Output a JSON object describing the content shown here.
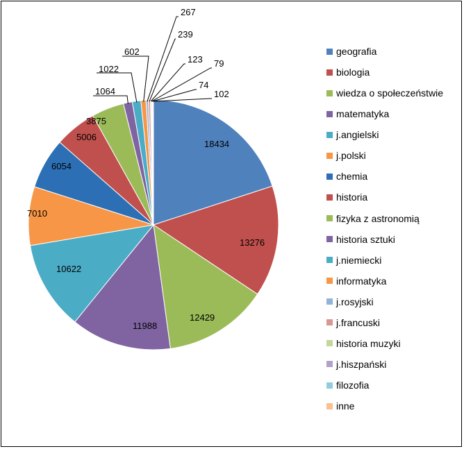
{
  "chart_data": {
    "type": "pie",
    "title": "",
    "legend_position": "right",
    "slices": [
      {
        "label": "geografia",
        "value": 18434,
        "color": "#4F81BD"
      },
      {
        "label": "biologia",
        "value": 13276,
        "color": "#C0504D"
      },
      {
        "label": "wiedza o społeczeństwie",
        "value": 12429,
        "color": "#9BBB59"
      },
      {
        "label": "matematyka",
        "value": 11988,
        "color": "#8064A2"
      },
      {
        "label": "j.angielski",
        "value": 10622,
        "color": "#4BACC6"
      },
      {
        "label": "j.polski",
        "value": 7010,
        "color": "#F79646"
      },
      {
        "label": "chemia",
        "value": 6054,
        "color": "#2C6FB5"
      },
      {
        "label": "historia",
        "value": 5006,
        "color": "#C0504D"
      },
      {
        "label": "fizyka z astronomią",
        "value": 3875,
        "color": "#9BBB59"
      },
      {
        "label": "historia sztuki",
        "value": 1064,
        "color": "#8064A2"
      },
      {
        "label": "j.niemiecki",
        "value": 1022,
        "color": "#4BACC6"
      },
      {
        "label": "informatyka",
        "value": 602,
        "color": "#F79646"
      },
      {
        "label": "j.rosyjski",
        "value": 267,
        "color": "#95B3D7"
      },
      {
        "label": "j.francuski",
        "value": 239,
        "color": "#D99694"
      },
      {
        "label": "historia muzyki",
        "value": 123,
        "color": "#C3D69B"
      },
      {
        "label": "j.hiszpański",
        "value": 79,
        "color": "#B2A2C7"
      },
      {
        "label": "filozofia",
        "value": 74,
        "color": "#92CDDC"
      },
      {
        "label": "inne",
        "value": 102,
        "color": "#FAC090"
      }
    ]
  }
}
